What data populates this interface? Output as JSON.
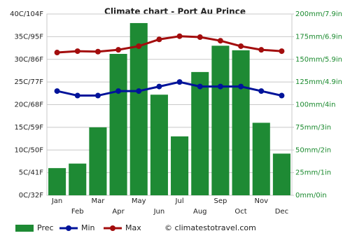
{
  "chart_data": {
    "type": "combo",
    "title": "Climate chart - Port Au Prince",
    "categories": [
      "Jan",
      "Feb",
      "Mar",
      "Apr",
      "May",
      "Jun",
      "Jul",
      "Aug",
      "Sep",
      "Oct",
      "Nov",
      "Dec"
    ],
    "series": [
      {
        "name": "Prec",
        "type": "bar",
        "axis": "y2",
        "color": "#1e8a34",
        "values": [
          30,
          35,
          75,
          156,
          190,
          111,
          65,
          136,
          165,
          160,
          80,
          46
        ]
      },
      {
        "name": "Min",
        "type": "line",
        "color": "#00139a",
        "values": [
          23,
          22,
          22,
          23,
          23,
          24,
          25,
          24,
          24,
          24,
          23,
          22
        ]
      },
      {
        "name": "Max",
        "type": "line",
        "color": "#a30d0d",
        "values": [
          31.5,
          31.8,
          31.7,
          32.1,
          32.9,
          34.4,
          35.1,
          34.9,
          34.1,
          32.9,
          32.1,
          31.8
        ]
      }
    ],
    "ylim": [
      0,
      40
    ],
    "yticks": [
      {
        "value": 0,
        "label": "0C/32F"
      },
      {
        "value": 5,
        "label": "5C/41F"
      },
      {
        "value": 10,
        "label": "10C/50F"
      },
      {
        "value": 15,
        "label": "15C/59F"
      },
      {
        "value": 20,
        "label": "20C/68F"
      },
      {
        "value": 25,
        "label": "25C/77F"
      },
      {
        "value": 30,
        "label": "30C/86F"
      },
      {
        "value": 35,
        "label": "35C/95F"
      },
      {
        "value": 40,
        "label": "40C/104F"
      }
    ],
    "y2lim": [
      0,
      200
    ],
    "y2ticks": [
      {
        "value": 0,
        "label": "0mm/0in"
      },
      {
        "value": 25,
        "label": "25mm/1in"
      },
      {
        "value": 50,
        "label": "50mm/2in"
      },
      {
        "value": 75,
        "label": "75mm/3in"
      },
      {
        "value": 100,
        "label": "100mm/4in"
      },
      {
        "value": 125,
        "label": "125mm/4.9in"
      },
      {
        "value": 150,
        "label": "150mm/5.9in"
      },
      {
        "value": 175,
        "label": "175mm/6.9in"
      },
      {
        "value": 200,
        "label": "200mm/7.9in"
      }
    ],
    "grid": true,
    "watermark": "© climatestotravel.com"
  }
}
